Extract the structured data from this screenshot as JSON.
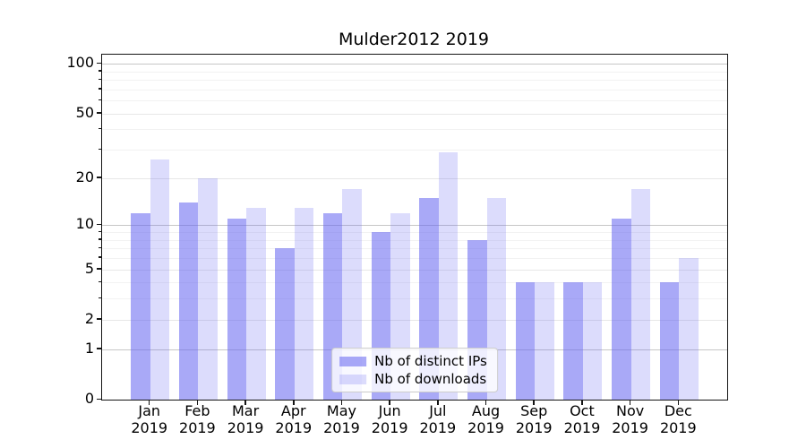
{
  "chart_data": {
    "type": "bar",
    "title": "Mulder2012 2019",
    "year": "2019",
    "months": [
      "Jan",
      "Feb",
      "Mar",
      "Apr",
      "May",
      "Jun",
      "Jul",
      "Aug",
      "Sep",
      "Oct",
      "Nov",
      "Dec"
    ],
    "categories": [
      "Jan 2019",
      "Feb 2019",
      "Mar 2019",
      "Apr 2019",
      "May 2019",
      "Jun 2019",
      "Jul 2019",
      "Aug 2019",
      "Sep 2019",
      "Oct 2019",
      "Nov 2019",
      "Dec 2019"
    ],
    "series": [
      {
        "name": "Nb of distinct IPs",
        "color": "rgba(102,102,240,0.56)",
        "values": [
          12,
          14,
          11,
          7,
          12,
          9,
          15,
          8,
          4,
          4,
          11,
          4
        ]
      },
      {
        "name": "Nb of downloads",
        "color": "rgba(102,102,240,0.23)",
        "values": [
          26,
          20,
          13,
          13,
          17,
          12,
          29,
          15,
          4,
          4,
          17,
          6
        ]
      }
    ],
    "xlabel": "",
    "ylabel": "",
    "y_scale": "symlog ln(1+v)",
    "y_major_ticks": [
      0,
      1,
      2,
      5,
      10,
      20,
      50,
      100
    ],
    "y_decade_ticks": [
      1,
      10,
      100
    ],
    "y_minor_ticks": [
      3,
      4,
      6,
      7,
      8,
      9,
      30,
      40,
      60,
      70,
      80,
      90
    ],
    "ylim": [
      0,
      114
    ],
    "grid": true,
    "legend_position": "lower center"
  }
}
